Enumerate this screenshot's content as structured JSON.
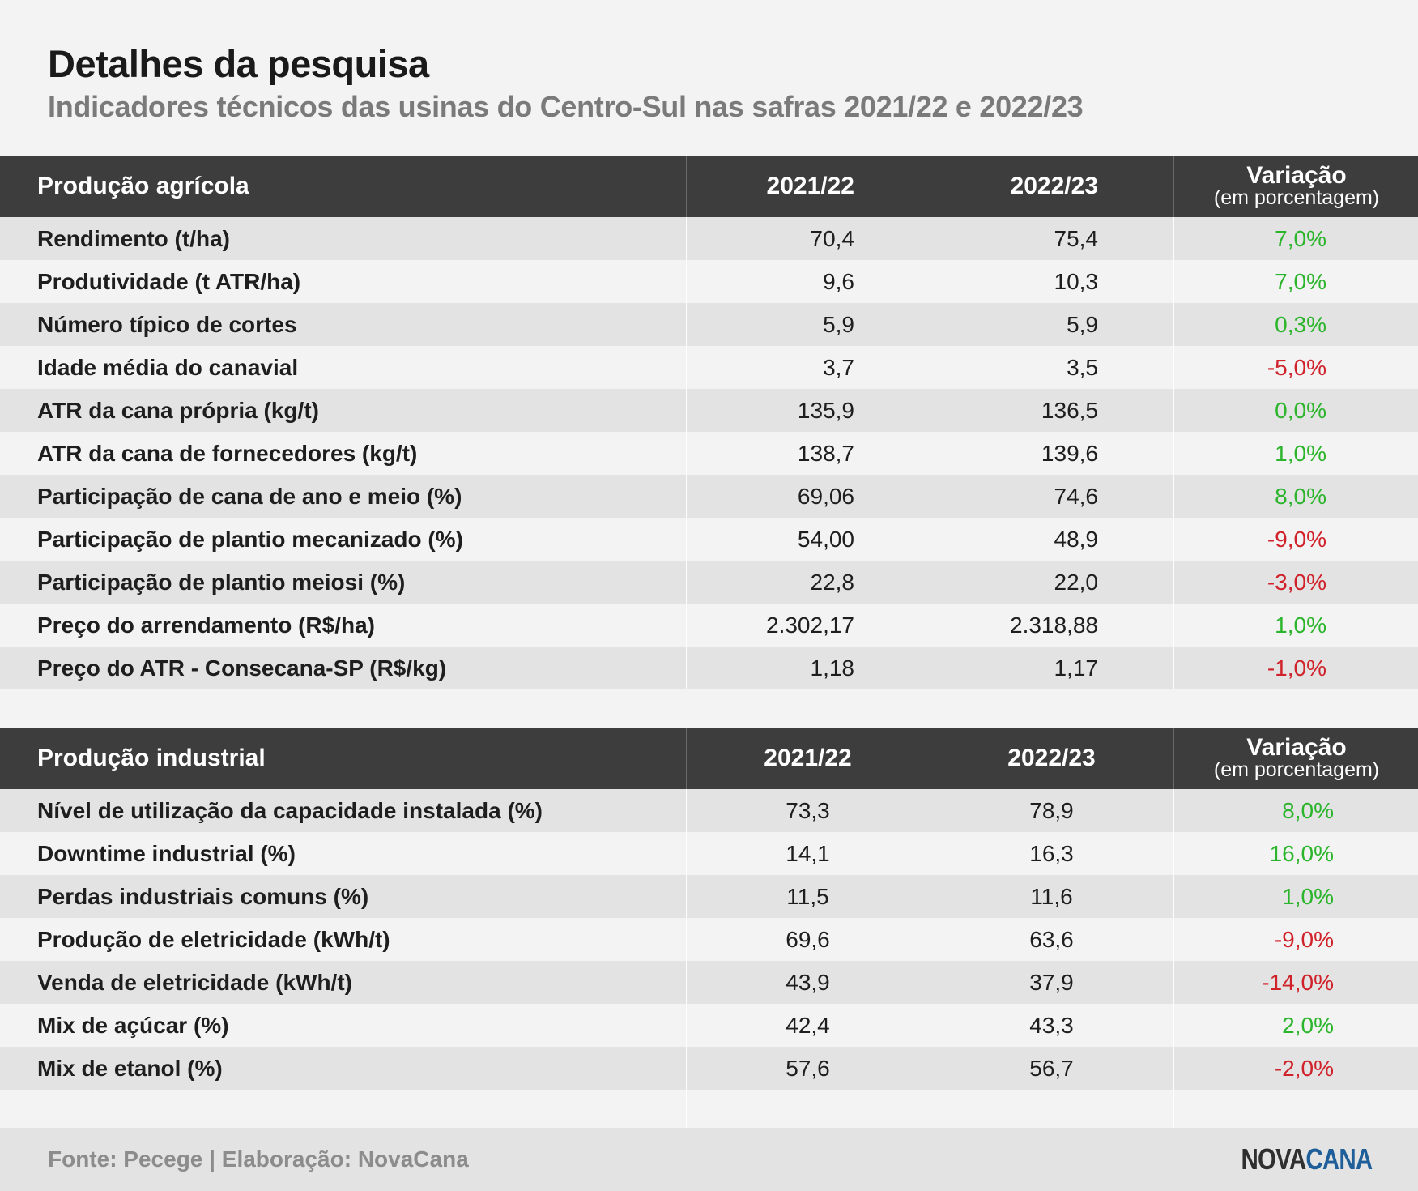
{
  "title": "Detalhes da pesquisa",
  "subtitle": "Indicadores técnicos das usinas do Centro-Sul nas safras 2021/22 e 2022/23",
  "colors": {
    "header_bg": "#3d3d3d",
    "positive": "#2cb52c",
    "negative": "#d0222a",
    "row_alt": "#e3e3e3"
  },
  "agricola": {
    "headers": [
      "Produção agrícola",
      "2021/22",
      "2022/23",
      "Variação",
      "(em porcentagem)"
    ],
    "rows": [
      {
        "label": "Rendimento (t/ha)",
        "v1": "70,4",
        "v2": "75,4",
        "var": "7,0%",
        "sign": "pos"
      },
      {
        "label": "Produtividade (t ATR/ha)",
        "v1": "9,6",
        "v2": "10,3",
        "var": "7,0%",
        "sign": "pos"
      },
      {
        "label": "Número típico de cortes",
        "v1": "5,9",
        "v2": "5,9",
        "var": "0,3%",
        "sign": "pos"
      },
      {
        "label": "Idade média do canavial",
        "v1": "3,7",
        "v2": "3,5",
        "var": "-5,0%",
        "sign": "neg"
      },
      {
        "label": "ATR da cana própria (kg/t)",
        "v1": "135,9",
        "v2": "136,5",
        "var": "0,0%",
        "sign": "pos"
      },
      {
        "label": "ATR da cana de fornecedores (kg/t)",
        "v1": "138,7",
        "v2": "139,6",
        "var": "1,0%",
        "sign": "pos"
      },
      {
        "label": "Participação de cana de ano e meio (%)",
        "v1": "69,06",
        "v2": "74,6",
        "var": "8,0%",
        "sign": "pos"
      },
      {
        "label": "Participação de plantio mecanizado (%)",
        "v1": "54,00",
        "v2": "48,9",
        "var": "-9,0%",
        "sign": "neg"
      },
      {
        "label": "Participação de plantio meiosi (%)",
        "v1": "22,8",
        "v2": "22,0",
        "var": "-3,0%",
        "sign": "neg"
      },
      {
        "label": "Preço do arrendamento (R$/ha)",
        "v1": "2.302,17",
        "v2": "2.318,88",
        "var": "1,0%",
        "sign": "pos"
      },
      {
        "label": "Preço do ATR - Consecana-SP (R$/kg)",
        "v1": "1,18",
        "v2": "1,17",
        "var": "-1,0%",
        "sign": "neg"
      }
    ]
  },
  "industrial": {
    "headers": [
      "Produção industrial",
      "2021/22",
      "2022/23",
      "Variação",
      "(em porcentagem)"
    ],
    "rows": [
      {
        "label": "Nível de utilização da capacidade instalada (%)",
        "v1": "73,3",
        "v2": "78,9",
        "var": "8,0%",
        "sign": "pos"
      },
      {
        "label": "Downtime industrial (%)",
        "v1": "14,1",
        "v2": "16,3",
        "var": "16,0%",
        "sign": "pos"
      },
      {
        "label": "Perdas industriais comuns (%)",
        "v1": "11,5",
        "v2": "11,6",
        "var": "1,0%",
        "sign": "pos"
      },
      {
        "label": "Produção de eletricidade (kWh/t)",
        "v1": "69,6",
        "v2": "63,6",
        "var": "-9,0%",
        "sign": "neg"
      },
      {
        "label": "Venda de eletricidade (kWh/t)",
        "v1": "43,9",
        "v2": "37,9",
        "var": "-14,0%",
        "sign": "neg"
      },
      {
        "label": "Mix de açúcar (%)",
        "v1": "42,4",
        "v2": "43,3",
        "var": "2,0%",
        "sign": "pos"
      },
      {
        "label": "Mix de etanol (%)",
        "v1": "57,6",
        "v2": "56,7",
        "var": "-2,0%",
        "sign": "neg"
      }
    ]
  },
  "footer": {
    "source": "Fonte: Pecege | Elaboração: NovaCana",
    "logo_a": "NOVA",
    "logo_b": "CANA"
  }
}
